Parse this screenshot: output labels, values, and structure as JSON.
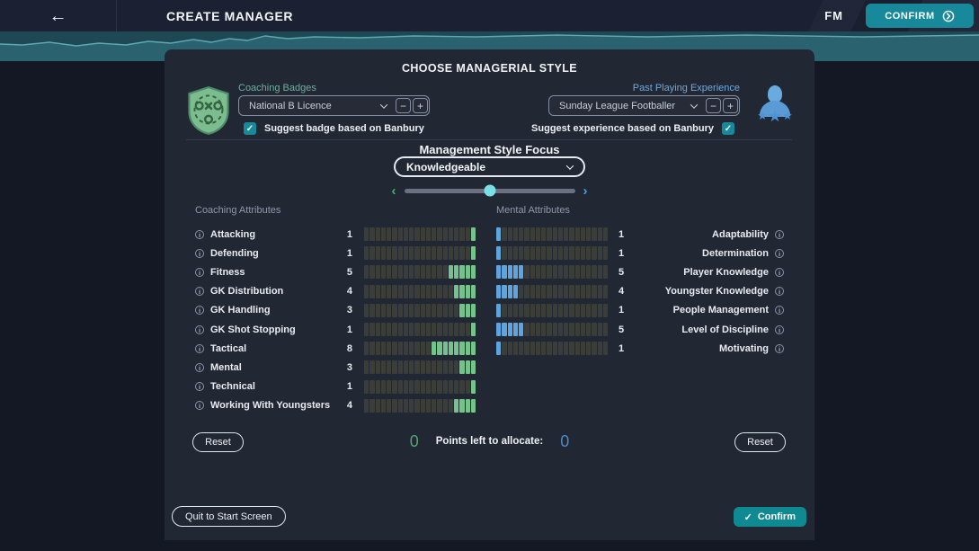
{
  "header": {
    "title": "CREATE MANAGER",
    "fm_label": "FM",
    "confirm_label": "CONFIRM"
  },
  "panel": {
    "heading": "CHOOSE MANAGERIAL STYLE",
    "coaching_badges": {
      "label": "Coaching Badges",
      "selected": "National B Licence",
      "checkbox_label": "Suggest badge based on Banbury",
      "checked": true
    },
    "past_experience": {
      "label": "Past Playing Experience",
      "selected": "Sunday League Footballer",
      "checkbox_label": "Suggest experience based on Banbury",
      "checked": true
    },
    "style_focus": {
      "heading": "Management Style Focus",
      "selected": "Knowledgeable",
      "slider_position": 0.5
    },
    "attributes": {
      "coaching_heading": "Coaching Attributes",
      "mental_heading": "Mental Attributes",
      "max": 20,
      "coaching": [
        {
          "label": "Attacking",
          "value": 1
        },
        {
          "label": "Defending",
          "value": 1
        },
        {
          "label": "Fitness",
          "value": 5
        },
        {
          "label": "GK Distribution",
          "value": 4
        },
        {
          "label": "GK Handling",
          "value": 3
        },
        {
          "label": "GK Shot Stopping",
          "value": 1
        },
        {
          "label": "Tactical",
          "value": 8
        },
        {
          "label": "Mental",
          "value": 3
        },
        {
          "label": "Technical",
          "value": 1
        },
        {
          "label": "Working With Youngsters",
          "value": 4
        }
      ],
      "mental": [
        {
          "label": "Adaptability",
          "value": 1
        },
        {
          "label": "Determination",
          "value": 1
        },
        {
          "label": "Player Knowledge",
          "value": 5
        },
        {
          "label": "Youngster Knowledge",
          "value": 4
        },
        {
          "label": "People Management",
          "value": 1
        },
        {
          "label": "Level of Discipline",
          "value": 5
        },
        {
          "label": "Motivating",
          "value": 1
        }
      ]
    },
    "points": {
      "coaching_left": "0",
      "label": "Points left to allocate:",
      "mental_left": "0"
    },
    "reset_label": "Reset",
    "footer": {
      "quit_label": "Quit to Start Screen",
      "confirm_label": "Confirm"
    }
  },
  "icons": {
    "back_arrow": "←",
    "check": "✓",
    "minus": "−",
    "plus": "+",
    "info": "i",
    "chevron_left": "‹",
    "chevron_right": "›",
    "stars": "★"
  },
  "colors": {
    "accent_teal": "#17899a",
    "bar_green": "#76c28c",
    "bar_blue": "#5fa4dd",
    "band_teal": "#2a6270",
    "zero_green": "#57a26f",
    "zero_blue": "#4d88c7"
  }
}
